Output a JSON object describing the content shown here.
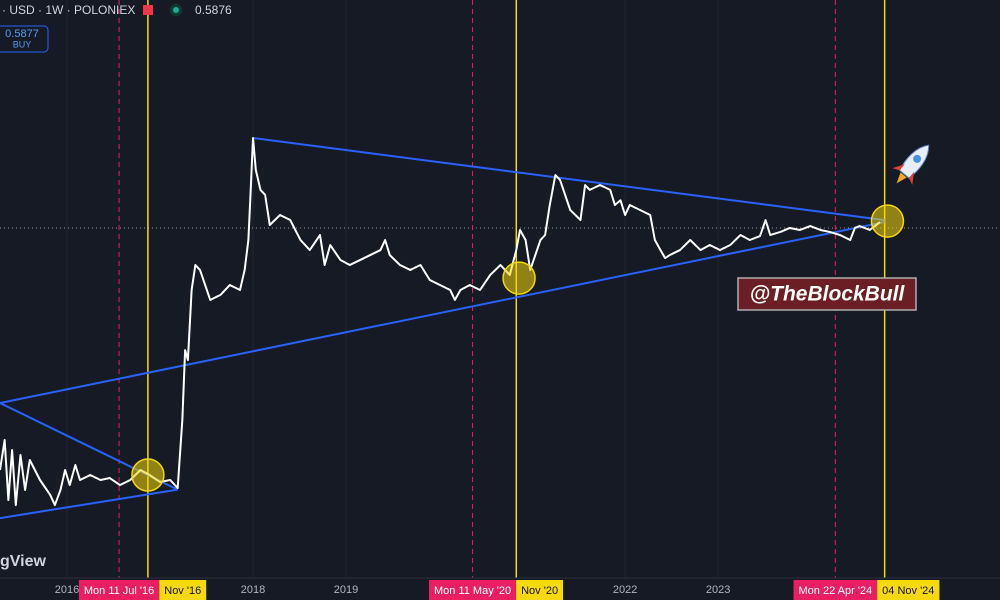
{
  "toolbar": {
    "symbol": "· USD · 1W · POLONIEX",
    "price": 0.5876,
    "buy_price": 0.5877,
    "buy_label": "BUY",
    "logo": "gView"
  },
  "watermark": "@TheBlockBull",
  "chart_data": {
    "type": "line",
    "log_scale": true,
    "grid": true,
    "color": "#ffffff",
    "xlim": [
      2015.28,
      2026.03
    ],
    "ylim": [
      0.00047,
      46.5
    ],
    "xticks": [
      2016,
      2018,
      2019,
      2022,
      2023
    ],
    "x": [
      2015.28,
      2015.33,
      2015.37,
      2015.41,
      2015.45,
      2015.5,
      2015.55,
      2015.6,
      2015.71,
      2015.82,
      2015.87,
      2015.93,
      2015.98,
      2016.03,
      2016.09,
      2016.14,
      2016.25,
      2016.36,
      2016.46,
      2016.57,
      2016.68,
      2016.79,
      2016.89,
      2017.0,
      2017.11,
      2017.19,
      2017.24,
      2017.27,
      2017.3,
      2017.34,
      2017.38,
      2017.43,
      2017.54,
      2017.65,
      2017.75,
      2017.86,
      2017.91,
      2017.95,
      2017.97,
      2018.0,
      2018.03,
      2018.08,
      2018.13,
      2018.18,
      2018.29,
      2018.4,
      2018.51,
      2018.61,
      2018.72,
      2018.77,
      2018.83,
      2018.94,
      2019.04,
      2019.15,
      2019.26,
      2019.37,
      2019.42,
      2019.47,
      2019.58,
      2019.69,
      2019.8,
      2019.9,
      2020.01,
      2020.12,
      2020.17,
      2020.23,
      2020.33,
      2020.44,
      2020.55,
      2020.66,
      2020.76,
      2020.83,
      2020.87,
      2020.93,
      2020.98,
      2021.09,
      2021.14,
      2021.19,
      2021.25,
      2021.3,
      2021.41,
      2021.52,
      2021.57,
      2021.62,
      2021.73,
      2021.84,
      2021.89,
      2021.95,
      2022.0,
      2022.05,
      2022.16,
      2022.27,
      2022.32,
      2022.38,
      2022.43,
      2022.48,
      2022.59,
      2022.7,
      2022.81,
      2022.91,
      2023.02,
      2023.13,
      2023.24,
      2023.34,
      2023.45,
      2023.51,
      2023.56,
      2023.67,
      2023.77,
      2023.88,
      2023.99,
      2024.1,
      2024.2,
      2024.31,
      2024.42,
      2024.47,
      2024.52,
      2024.63,
      2024.74
    ],
    "values": [
      0.00568,
      0.0101,
      0.00319,
      0.00834,
      0.0029,
      0.00757,
      0.00387,
      0.00688,
      0.00469,
      0.00352,
      0.0029,
      0.00387,
      0.00568,
      0.00426,
      0.00625,
      0.00469,
      0.00516,
      0.00469,
      0.00487,
      0.00426,
      0.00469,
      0.00568,
      0.00516,
      0.00451,
      0.00469,
      0.00402,
      0.0148,
      0.0566,
      0.0468,
      0.179,
      0.289,
      0.263,
      0.148,
      0.163,
      0.197,
      0.179,
      0.263,
      0.467,
      1.0,
      3.3,
      1.79,
      1.22,
      1.11,
      0.622,
      0.754,
      0.685,
      0.467,
      0.385,
      0.514,
      0.289,
      0.424,
      0.318,
      0.289,
      0.318,
      0.35,
      0.385,
      0.467,
      0.35,
      0.289,
      0.263,
      0.289,
      0.217,
      0.197,
      0.179,
      0.148,
      0.179,
      0.197,
      0.179,
      0.239,
      0.289,
      0.239,
      0.385,
      0.566,
      0.467,
      0.263,
      0.467,
      0.514,
      0.913,
      1.62,
      1.48,
      0.83,
      0.685,
      1.34,
      1.22,
      1.34,
      1.22,
      0.913,
      1.0,
      0.754,
      0.913,
      0.83,
      0.754,
      0.467,
      0.385,
      0.33,
      0.35,
      0.385,
      0.467,
      0.385,
      0.424,
      0.385,
      0.424,
      0.514,
      0.467,
      0.504,
      0.685,
      0.514,
      0.545,
      0.588,
      0.566,
      0.61,
      0.566,
      0.545,
      0.514,
      0.467,
      0.588,
      0.61,
      0.566,
      0.659
    ],
    "trendlines": [
      {
        "color": "#2962ff",
        "x": [
          2018.0,
          2024.79
        ],
        "values": [
          3.3,
          0.684
        ]
      },
      {
        "color": "#2962ff",
        "x": [
          2015.28,
          2024.79
        ],
        "values": [
          0.0205,
          0.659
        ]
      },
      {
        "color": "#2962ff",
        "x": [
          2015.28,
          2017.19
        ],
        "values": [
          0.0205,
          0.0039
        ]
      },
      {
        "color": "#2962ff",
        "x": [
          2015.28,
          2017.19
        ],
        "values": [
          0.00226,
          0.0039
        ]
      }
    ],
    "highlights": [
      {
        "color": "#f5d90a",
        "x": 2016.87,
        "value": 0.00516
      },
      {
        "color": "#f5d90a",
        "x": 2020.86,
        "value": 0.225
      },
      {
        "color": "#f5d90a",
        "x": 2024.82,
        "value": 0.671
      }
    ],
    "markers": [
      {
        "x": 2016.56,
        "label": "Mon 11 Jul '16",
        "color": "#e91e63",
        "dashed": true
      },
      {
        "x": 2016.87,
        "label": "Nov '16",
        "color": "#f5d90a",
        "dashed": false
      },
      {
        "x": 2020.36,
        "label": "Mon 11 May '20",
        "color": "#e91e63",
        "dashed": true
      },
      {
        "x": 2020.83,
        "label": "Nov '20",
        "color": "#f5d90a",
        "dashed": false
      },
      {
        "x": 2024.26,
        "label": "Mon 22 Apr '24",
        "color": "#e91e63",
        "dashed": true
      },
      {
        "x": 2024.79,
        "label": "04 Nov '24",
        "color": "#f5d90a",
        "dashed": false
      }
    ]
  }
}
